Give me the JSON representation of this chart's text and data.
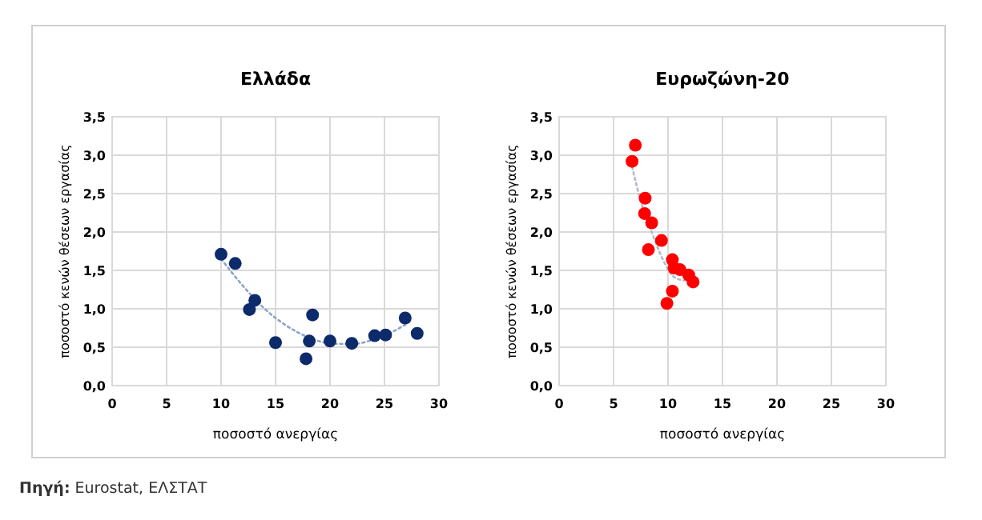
{
  "chart_data": [
    {
      "type": "scatter",
      "title": "Ελλάδα",
      "xlabel": "ποσοστό ανεργίας",
      "ylabel": "ποσοστό κενών θέσεων εργασίας",
      "xlim": [
        0,
        30
      ],
      "xticks": [
        0,
        5,
        10,
        15,
        20,
        25,
        30
      ],
      "ylim": [
        0,
        3.5
      ],
      "yticks": [
        {
          "value": 0,
          "label": "0,0"
        },
        {
          "value": 0.5,
          "label": "0,5"
        },
        {
          "value": 1,
          "label": "1,0"
        },
        {
          "value": 1.5,
          "label": "1,5"
        },
        {
          "value": 2,
          "label": "2,0"
        },
        {
          "value": 2.5,
          "label": "2,5"
        },
        {
          "value": 3,
          "label": "3,0"
        },
        {
          "value": 3.5,
          "label": "3,5"
        }
      ],
      "grid": true,
      "marker": "circle",
      "series": [
        {
          "type": "line",
          "color": "#8ea3c8",
          "line_style": "dotted",
          "marker": "none",
          "x": [
            10,
            12,
            14,
            16,
            18,
            20,
            22,
            24,
            26,
            27
          ],
          "values": [
            1.65,
            1.3,
            1.0,
            0.78,
            0.63,
            0.55,
            0.54,
            0.6,
            0.72,
            0.8
          ]
        },
        {
          "color": "#0d2a6b",
          "x": [
            10,
            11.3,
            12.6,
            13.1,
            15,
            17.8,
            18.1,
            18.4,
            20,
            22,
            24.1,
            25.1,
            26.9,
            28
          ],
          "values": [
            1.71,
            1.59,
            0.99,
            1.11,
            0.56,
            0.35,
            0.58,
            0.92,
            0.58,
            0.55,
            0.65,
            0.66,
            0.88,
            0.68
          ]
        }
      ]
    },
    {
      "type": "scatter",
      "title": "Ευρωζώνη-20",
      "xlabel": "ποσοστό ανεργίας",
      "ylabel": "ποσοστό κενών θέσεων εργασίας",
      "xlim": [
        0,
        30
      ],
      "xticks": [
        0,
        5,
        10,
        15,
        20,
        25,
        30
      ],
      "ylim": [
        0,
        3.5
      ],
      "yticks": [
        {
          "value": 0,
          "label": "0,0"
        },
        {
          "value": 0.5,
          "label": "0,5"
        },
        {
          "value": 1,
          "label": "1,0"
        },
        {
          "value": 1.5,
          "label": "1,5"
        },
        {
          "value": 2,
          "label": "2,0"
        },
        {
          "value": 2.5,
          "label": "2,5"
        },
        {
          "value": 3,
          "label": "3,0"
        },
        {
          "value": 3.5,
          "label": "3,5"
        }
      ],
      "grid": true,
      "marker": "circle",
      "annotations": [
        "Πηγή: Eurostat, ΕΛΣΤΑΤ"
      ],
      "series": [
        {
          "type": "line",
          "color": "#b4b9c8",
          "line_style": "dotted",
          "marker": "none",
          "x": [
            6.7,
            7.5,
            8.5,
            9.5,
            10.5,
            11.5,
            12.2
          ],
          "values": [
            2.85,
            2.4,
            2.0,
            1.65,
            1.42,
            1.37,
            1.4
          ]
        },
        {
          "color": "#ff0000",
          "x": [
            7.0,
            6.7,
            7.9,
            7.85,
            8.5,
            9.4,
            8.2,
            10.4,
            10.55,
            11.1,
            11.9,
            12.3,
            10.4,
            9.9
          ],
          "values": [
            3.13,
            2.92,
            2.44,
            2.24,
            2.12,
            1.89,
            1.77,
            1.64,
            1.53,
            1.51,
            1.44,
            1.35,
            1.23,
            1.07
          ]
        }
      ]
    }
  ]
}
